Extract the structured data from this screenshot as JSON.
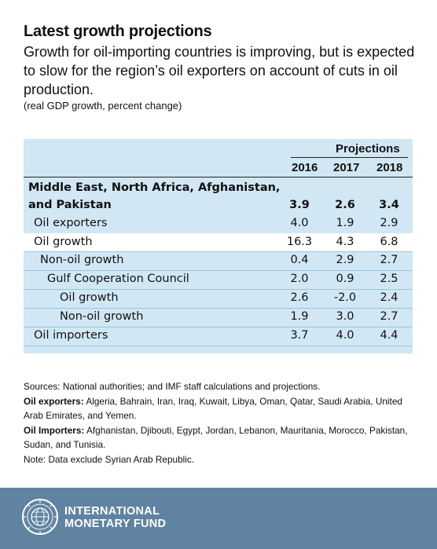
{
  "header": {
    "title": "Latest growth projections",
    "subtitle": "Growth for oil-importing countries is improving, but is expected to slow for the region’s oil exporters on account of cuts in oil production.",
    "unit_note": "(real GDP growth, percent change)"
  },
  "chart_data": {
    "type": "table",
    "projections_label": "Projections",
    "columns": [
      "2016",
      "2017",
      "2018"
    ],
    "rows": [
      {
        "label_lines": [
          "Middle East, North Africa, Afghanistan,",
          "and Pakistan"
        ],
        "values": [
          "3.9",
          "2.6",
          "3.4"
        ],
        "bold": true
      },
      {
        "label": "Oil exporters",
        "values": [
          "4.0",
          "1.9",
          "2.9"
        ],
        "indent": 1
      },
      {
        "label": "Oil growth",
        "values": [
          "16.3",
          "4.3",
          "6.8"
        ],
        "indent": 1
      },
      {
        "label": "Non-oil growth",
        "values": [
          "0.4",
          "2.9",
          "2.7"
        ],
        "indent": 2
      },
      {
        "label": "Gulf Cooperation Council",
        "values": [
          "2.0",
          "0.9",
          "2.5"
        ],
        "indent": 3
      },
      {
        "label": "Oil growth",
        "values": [
          "2.6",
          "-2.0",
          "2.4"
        ],
        "indent": 4
      },
      {
        "label": "Non-oil growth",
        "values": [
          "1.9",
          "3.0",
          "2.7"
        ],
        "indent": 4
      },
      {
        "label": "Oil importers",
        "values": [
          "3.7",
          "4.0",
          "4.4"
        ],
        "indent": 1
      }
    ]
  },
  "notes": {
    "sources": "Sources: National authorities; and IMF staff calculations and projections.",
    "exporters_label": "Oil exporters:",
    "exporters_text": " Algeria, Bahrain, Iran, Iraq, Kuwait, Libya, Oman, Qatar, Saudi Arabia, United Arab Emirates, and Yemen.",
    "importers_label": "Oil Importers:",
    "importers_text": " Afghanistan, Djibouti, Egypt, Jordan, Lebanon, Mauritania, Morocco, Pakistan, Sudan, and Tunisia.",
    "exclusion": "Note: Data exclude Syrian Arab Republic."
  },
  "footer": {
    "org_line1": "INTERNATIONAL",
    "org_line2": "MONETARY FUND",
    "seal_icon": "imf-seal-icon",
    "background_color": "#5f83a0"
  }
}
